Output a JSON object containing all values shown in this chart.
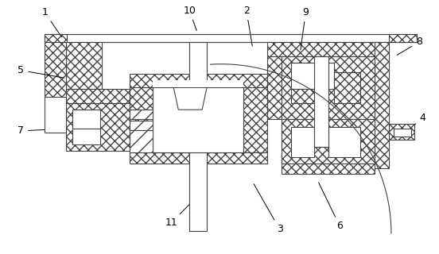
{
  "fig_width": 5.52,
  "fig_height": 3.2,
  "dpi": 100,
  "bg_color": "#ffffff",
  "lc": "#444444",
  "lw": 0.8,
  "labels": [
    [
      "1",
      55,
      14,
      78,
      48
    ],
    [
      "10",
      238,
      12,
      248,
      40
    ],
    [
      "2",
      310,
      12,
      318,
      60
    ],
    [
      "9",
      385,
      14,
      378,
      65
    ],
    [
      "8",
      528,
      52,
      498,
      70
    ],
    [
      "5",
      25,
      88,
      82,
      98
    ],
    [
      "7",
      25,
      165,
      82,
      162
    ],
    [
      "4",
      533,
      148,
      510,
      168
    ],
    [
      "11",
      215,
      282,
      248,
      248
    ],
    [
      "3",
      352,
      290,
      318,
      230
    ],
    [
      "6",
      428,
      286,
      400,
      228
    ]
  ]
}
